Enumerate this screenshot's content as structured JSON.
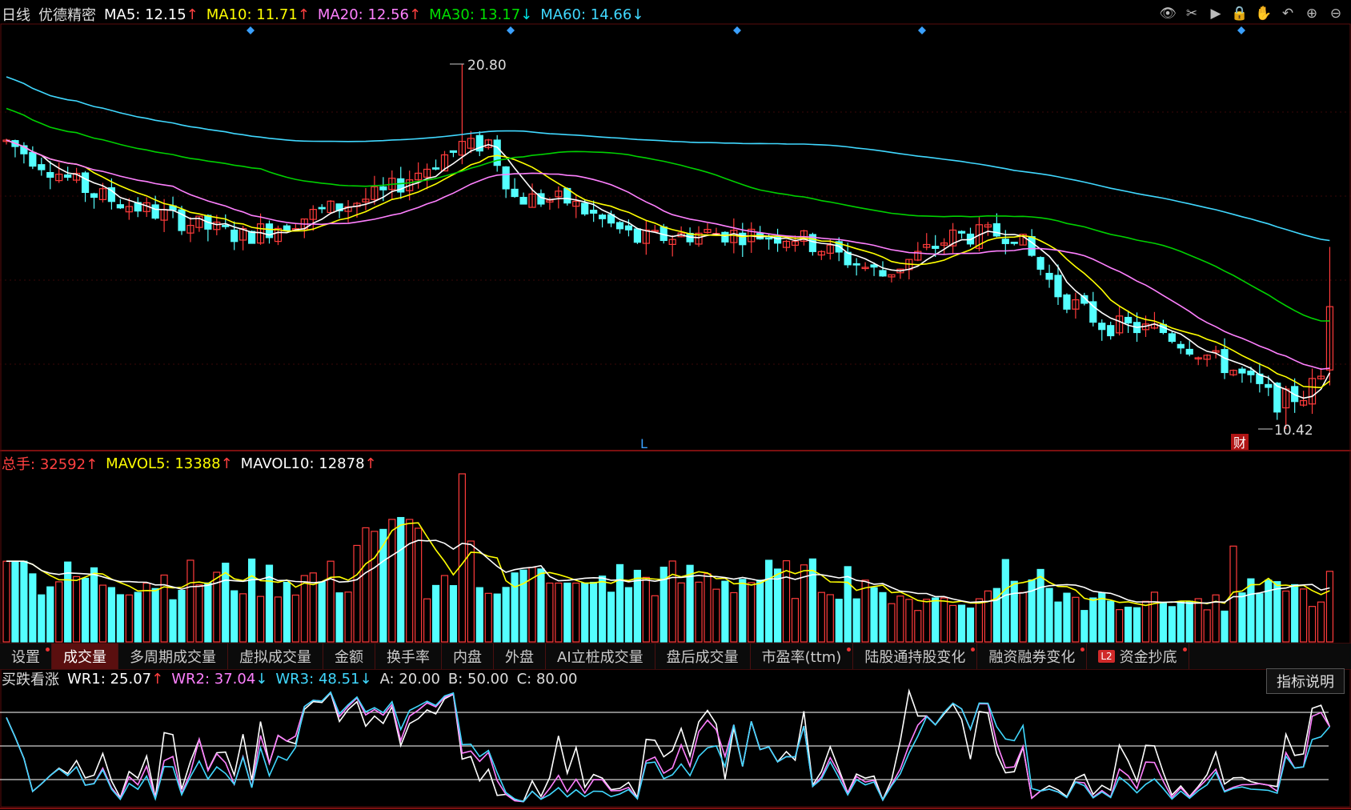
{
  "header": {
    "period": "日线",
    "stock_name": "优德精密",
    "ma": [
      {
        "label": "MA5:",
        "value": "12.15",
        "arrow": "↑",
        "color": "#ffffff",
        "arrow_color": "#ff4040"
      },
      {
        "label": "MA10:",
        "value": "11.71",
        "arrow": "↑",
        "color": "#ffff00",
        "arrow_color": "#ff4040"
      },
      {
        "label": "MA20:",
        "value": "12.56",
        "arrow": "↑",
        "color": "#ff80ff",
        "arrow_color": "#ff4040"
      },
      {
        "label": "MA30:",
        "value": "13.17",
        "arrow": "↓",
        "color": "#00e000",
        "arrow_color": "#00e0e0"
      },
      {
        "label": "MA60:",
        "value": "14.66",
        "arrow": "↓",
        "color": "#40d8ff",
        "arrow_color": "#40d8ff"
      }
    ]
  },
  "toolbar": {
    "icons": [
      "eye-icon",
      "scissors-icon",
      "play-icon",
      "lock-icon",
      "hand-icon",
      "undo-icon",
      "zoom-in-icon",
      "zoom-out-icon"
    ],
    "glyphs": [
      "👁",
      "✂",
      "▶",
      "🔒",
      "✋",
      "↶",
      "⊕",
      "⊖"
    ]
  },
  "price_chart": {
    "high_label": "20.80",
    "low_label": "10.42",
    "marker_L": "L",
    "marker_cai": "财"
  },
  "volume_header": {
    "total_label": "总手:",
    "total_value": "32592",
    "total_arrow": "↑",
    "mavol5_label": "MAVOL5:",
    "mavol5_value": "13388",
    "mavol5_arrow": "↑",
    "mavol10_label": "MAVOL10:",
    "mavol10_value": "12878",
    "mavol10_arrow": "↑"
  },
  "tabs": [
    {
      "label": "设置",
      "active": false,
      "dot": true
    },
    {
      "label": "成交量",
      "active": true,
      "dot": false
    },
    {
      "label": "多周期成交量",
      "active": false,
      "dot": false
    },
    {
      "label": "虚拟成交量",
      "active": false,
      "dot": false
    },
    {
      "label": "金额",
      "active": false,
      "dot": false
    },
    {
      "label": "换手率",
      "active": false,
      "dot": false
    },
    {
      "label": "内盘",
      "active": false,
      "dot": false
    },
    {
      "label": "外盘",
      "active": false,
      "dot": false
    },
    {
      "label": "AI立桩成交量",
      "active": false,
      "dot": false
    },
    {
      "label": "盘后成交量",
      "active": false,
      "dot": false
    },
    {
      "label": "市盈率(ttm)",
      "active": false,
      "dot": true
    },
    {
      "label": "陆股通持股变化",
      "active": false,
      "dot": true
    },
    {
      "label": "融资融券变化",
      "active": false,
      "dot": true
    },
    {
      "label": "资金抄底",
      "active": false,
      "dot": true,
      "badge": "L2"
    }
  ],
  "wr_header": {
    "name": "买跌看涨",
    "wr1_label": "WR1:",
    "wr1_value": "25.07",
    "wr1_arrow": "↑",
    "wr2_label": "WR2:",
    "wr2_value": "37.04",
    "wr2_arrow": "↓",
    "wr3_label": "WR3:",
    "wr3_value": "48.51",
    "wr3_arrow": "↓",
    "a_label": "A:",
    "a_value": "20.00",
    "b_label": "B:",
    "b_value": "50.00",
    "c_label": "C:",
    "c_value": "80.00"
  },
  "indicator_button": "指标说明",
  "chart_data": {
    "type": "candlestick",
    "title": "优德精密 日线",
    "price_high": 20.8,
    "price_low": 10.42,
    "ma_last": {
      "MA5": 12.15,
      "MA10": 11.71,
      "MA20": 12.56,
      "MA30": 13.17,
      "MA60": 14.66
    },
    "volume_last": 32592,
    "mavol_last": {
      "MAVOL5": 13388,
      "MAVOL10": 12878
    },
    "wr_last": {
      "WR1": 25.07,
      "WR2": 37.04,
      "WR3": 48.51
    },
    "wr_levels": [
      20,
      50,
      80
    ],
    "up_color": "#ff3b3b",
    "down_color": "#54ffff"
  }
}
